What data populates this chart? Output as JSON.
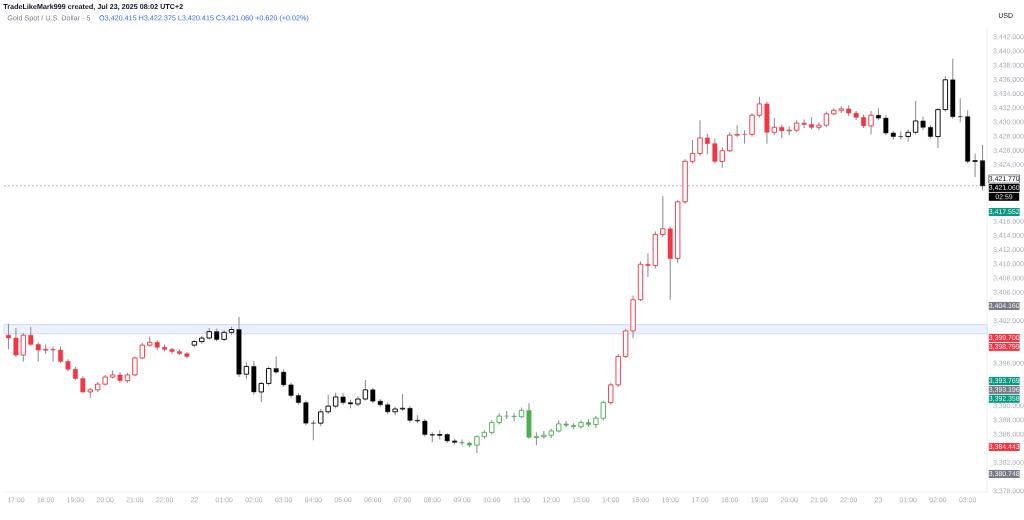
{
  "chart_data": {
    "type": "candlestick",
    "title": "Gold Spot / U.S. Dollar · 5",
    "subtitle": "O3,420.415 H3,422.375 L3,420.415 C3,421.060 +0.620 (+0.02%)",
    "ylabel": "USD",
    "categories": [
      null,
      "17:00",
      null,
      null,
      null,
      "18:00",
      null,
      null,
      null,
      "19:00",
      null,
      null,
      null,
      "20:00",
      null,
      null,
      null,
      "21:00",
      null,
      null,
      null,
      "22:00",
      null,
      null,
      null,
      "22",
      null,
      null,
      null,
      "01:00",
      null,
      null,
      null,
      "02:00",
      null,
      null,
      null,
      "03:00",
      null,
      null,
      null,
      "04:00",
      null,
      null,
      null,
      "05:00",
      null,
      null,
      null,
      "06:00",
      null,
      null,
      null,
      "07:00",
      null,
      null,
      null,
      "08:00",
      null,
      null,
      null,
      "09:00",
      null,
      null,
      null,
      "10:00",
      null,
      null,
      null,
      "11:00",
      null,
      null,
      null,
      "12:00",
      null,
      null,
      null,
      "13:00",
      null,
      null,
      null,
      "14:00",
      null,
      null,
      null,
      "15:00",
      null,
      null,
      null,
      "16:00",
      null,
      null,
      null,
      "17:00",
      null,
      null,
      null,
      "18:00",
      null,
      null,
      null,
      "19:00",
      null,
      null,
      null,
      "20:00",
      null,
      null,
      null,
      "21:00",
      null,
      null,
      null,
      "22:00",
      null,
      null,
      null,
      "23",
      null,
      null,
      null,
      "01:00",
      null,
      null,
      null,
      "02:00",
      null,
      null,
      null,
      "03:00",
      null,
      null
    ],
    "ohlc": [
      [
        3400.0,
        3401.6,
        3398.0,
        3399.6
      ],
      [
        3399.6,
        3401.0,
        3396.9,
        3397.2
      ],
      [
        3397.2,
        3400.3,
        3396.3,
        3400.0
      ],
      [
        3400.0,
        3401.2,
        3398.5,
        3398.7
      ],
      [
        3398.7,
        3399.0,
        3396.3,
        3397.9
      ],
      [
        3397.9,
        3398.7,
        3397.4,
        3398.0
      ],
      [
        3398.0,
        3398.4,
        3396.3,
        3397.9
      ],
      [
        3397.9,
        3398.4,
        3396.1,
        3396.3
      ],
      [
        3396.3,
        3396.6,
        3394.9,
        3395.2
      ],
      [
        3395.2,
        3395.5,
        3393.6,
        3393.9
      ],
      [
        3393.9,
        3394.2,
        3391.8,
        3392.0
      ],
      [
        3392.0,
        3392.6,
        3391.2,
        3392.3
      ],
      [
        3392.3,
        3393.4,
        3392.0,
        3393.1
      ],
      [
        3393.1,
        3394.4,
        3392.9,
        3394.1
      ],
      [
        3394.1,
        3395.0,
        3393.9,
        3394.4
      ],
      [
        3394.4,
        3394.8,
        3393.3,
        3393.6
      ],
      [
        3393.6,
        3394.7,
        3393.3,
        3394.4
      ],
      [
        3394.4,
        3397.0,
        3394.2,
        3396.8
      ],
      [
        3396.8,
        3398.9,
        3396.6,
        3398.6
      ],
      [
        3398.6,
        3399.8,
        3398.4,
        3399.0
      ],
      [
        3399.0,
        3399.3,
        3397.9,
        3398.3
      ],
      [
        3398.3,
        3398.7,
        3397.7,
        3398.0
      ],
      [
        3398.0,
        3398.2,
        3397.4,
        3397.7
      ],
      [
        3397.7,
        3398.0,
        3397.2,
        3397.4
      ],
      [
        3397.4,
        3397.6,
        3396.7,
        3397.0
      ],
      [
        3398.6,
        3399.3,
        3398.3,
        3399.1
      ],
      [
        3399.1,
        3399.9,
        3398.8,
        3399.6
      ],
      [
        3399.6,
        3401.0,
        3399.4,
        3400.5
      ],
      [
        3400.5,
        3400.9,
        3399.1,
        3399.4
      ],
      [
        3399.4,
        3400.7,
        3399.2,
        3400.4
      ],
      [
        3400.4,
        3401.2,
        3400.0,
        3400.8
      ],
      [
        3400.8,
        3402.6,
        3394.1,
        3394.5
      ],
      [
        3394.5,
        3396.2,
        3393.8,
        3395.6
      ],
      [
        3395.6,
        3396.4,
        3391.6,
        3392.0
      ],
      [
        3392.0,
        3393.4,
        3390.6,
        3393.2
      ],
      [
        3393.2,
        3395.6,
        3392.9,
        3395.3
      ],
      [
        3395.3,
        3397.0,
        3394.6,
        3394.8
      ],
      [
        3394.8,
        3395.2,
        3392.7,
        3393.0
      ],
      [
        3393.0,
        3393.3,
        3391.2,
        3391.5
      ],
      [
        3391.5,
        3391.8,
        3390.2,
        3390.5
      ],
      [
        3390.5,
        3390.8,
        3387.3,
        3387.6
      ],
      [
        3387.6,
        3388.0,
        3385.2,
        3387.6
      ],
      [
        3387.6,
        3389.6,
        3387.2,
        3389.2
      ],
      [
        3389.2,
        3391.6,
        3388.9,
        3390.0
      ],
      [
        3390.0,
        3391.9,
        3389.7,
        3391.3
      ],
      [
        3391.3,
        3391.8,
        3390.2,
        3390.5
      ],
      [
        3390.5,
        3390.9,
        3389.7,
        3390.3
      ],
      [
        3390.3,
        3391.4,
        3390.0,
        3391.0
      ],
      [
        3391.0,
        3393.7,
        3390.8,
        3392.3
      ],
      [
        3392.3,
        3392.6,
        3390.4,
        3390.7
      ],
      [
        3390.7,
        3391.0,
        3389.9,
        3390.2
      ],
      [
        3390.2,
        3390.5,
        3388.9,
        3389.2
      ],
      [
        3389.2,
        3389.9,
        3388.7,
        3389.6
      ],
      [
        3389.6,
        3391.7,
        3389.3,
        3389.7
      ],
      [
        3389.7,
        3390.0,
        3387.7,
        3388.0
      ],
      [
        3388.0,
        3388.7,
        3387.6,
        3387.9
      ],
      [
        3387.9,
        3388.2,
        3385.7,
        3386.0
      ],
      [
        3386.0,
        3386.3,
        3384.9,
        3385.9
      ],
      [
        3385.9,
        3386.6,
        3385.3,
        3386.0
      ],
      [
        3386.0,
        3386.2,
        3384.8,
        3385.1
      ],
      [
        3385.1,
        3385.4,
        3384.6,
        3384.9
      ],
      [
        3384.9,
        3385.3,
        3384.5,
        3384.8
      ],
      [
        3384.8,
        3385.0,
        3384.2,
        3384.5
      ],
      [
        3384.5,
        3385.9,
        3383.4,
        3385.7
      ],
      [
        3385.7,
        3386.6,
        3385.4,
        3386.3
      ],
      [
        3386.3,
        3388.0,
        3386.0,
        3387.7
      ],
      [
        3387.7,
        3389.0,
        3387.4,
        3388.6
      ],
      [
        3388.6,
        3389.3,
        3388.2,
        3388.6
      ],
      [
        3388.6,
        3389.0,
        3387.9,
        3388.5
      ],
      [
        3388.5,
        3389.8,
        3388.3,
        3389.4
      ],
      [
        3389.4,
        3390.4,
        3385.4,
        3385.6
      ],
      [
        3385.6,
        3386.3,
        3384.5,
        3385.7
      ],
      [
        3385.7,
        3386.5,
        3385.4,
        3385.9
      ],
      [
        3385.9,
        3386.8,
        3385.5,
        3386.5
      ],
      [
        3386.5,
        3388.0,
        3386.3,
        3387.5
      ],
      [
        3387.5,
        3387.9,
        3387.0,
        3387.3
      ],
      [
        3387.3,
        3387.6,
        3386.8,
        3387.1
      ],
      [
        3387.1,
        3388.0,
        3386.8,
        3387.7
      ],
      [
        3387.7,
        3388.2,
        3387.1,
        3387.4
      ],
      [
        3387.4,
        3388.6,
        3386.9,
        3388.3
      ],
      [
        3388.3,
        3390.8,
        3388.0,
        3390.5
      ],
      [
        3390.5,
        3393.3,
        3390.2,
        3393.0
      ],
      [
        3393.0,
        3397.3,
        3392.7,
        3397.0
      ],
      [
        3397.0,
        3400.9,
        3396.8,
        3400.6
      ],
      [
        3400.6,
        3405.6,
        3399.6,
        3405.0
      ],
      [
        3405.0,
        3410.4,
        3404.8,
        3410.0
      ],
      [
        3410.0,
        3411.5,
        3408.2,
        3409.8
      ],
      [
        3409.8,
        3414.6,
        3409.4,
        3414.2
      ],
      [
        3414.2,
        3419.6,
        3413.8,
        3415.0
      ],
      [
        3415.0,
        3415.3,
        3405.0,
        3410.8
      ],
      [
        3410.8,
        3419.1,
        3410.2,
        3418.8
      ],
      [
        3418.8,
        3424.8,
        3418.5,
        3424.5
      ],
      [
        3424.5,
        3427.5,
        3424.2,
        3425.6
      ],
      [
        3425.6,
        3430.3,
        3425.3,
        3427.8
      ],
      [
        3427.8,
        3428.4,
        3425.5,
        3427.0
      ],
      [
        3427.0,
        3427.7,
        3424.2,
        3424.5
      ],
      [
        3424.5,
        3426.5,
        3423.6,
        3426.0
      ],
      [
        3426.0,
        3428.6,
        3425.8,
        3428.2
      ],
      [
        3428.2,
        3429.6,
        3427.9,
        3428.3
      ],
      [
        3428.3,
        3428.9,
        3427.0,
        3428.3
      ],
      [
        3428.3,
        3431.3,
        3428.0,
        3431.0
      ],
      [
        3431.0,
        3433.6,
        3430.7,
        3432.6
      ],
      [
        3432.6,
        3432.9,
        3427.0,
        3428.6
      ],
      [
        3428.6,
        3430.6,
        3428.2,
        3429.3
      ],
      [
        3429.3,
        3429.7,
        3427.8,
        3428.8
      ],
      [
        3428.8,
        3429.4,
        3428.2,
        3428.9
      ],
      [
        3428.9,
        3430.3,
        3428.6,
        3429.9
      ],
      [
        3429.9,
        3430.4,
        3429.2,
        3429.7
      ],
      [
        3429.7,
        3430.7,
        3429.0,
        3429.3
      ],
      [
        3429.3,
        3430.0,
        3428.9,
        3429.6
      ],
      [
        3429.6,
        3431.5,
        3429.3,
        3431.2
      ],
      [
        3431.2,
        3432.0,
        3431.0,
        3431.7
      ],
      [
        3431.7,
        3432.3,
        3431.3,
        3431.9
      ],
      [
        3431.9,
        3432.4,
        3430.9,
        3431.3
      ],
      [
        3431.3,
        3431.6,
        3430.3,
        3430.7
      ],
      [
        3430.7,
        3431.1,
        3429.2,
        3429.5
      ],
      [
        3429.5,
        3431.6,
        3428.3,
        3431.0
      ],
      [
        3431.0,
        3432.0,
        3430.3,
        3430.6
      ],
      [
        3430.6,
        3431.0,
        3428.2,
        3428.5
      ],
      [
        3428.5,
        3428.8,
        3427.6,
        3428.0
      ],
      [
        3428.0,
        3428.7,
        3427.6,
        3428.0
      ],
      [
        3428.0,
        3429.0,
        3427.3,
        3428.6
      ],
      [
        3428.6,
        3433.0,
        3428.3,
        3430.2
      ],
      [
        3430.2,
        3430.8,
        3428.9,
        3429.3
      ],
      [
        3429.3,
        3429.6,
        3427.7,
        3428.0
      ],
      [
        3428.0,
        3432.0,
        3426.4,
        3431.8
      ],
      [
        3431.8,
        3436.5,
        3431.5,
        3436.0
      ],
      [
        3436.0,
        3439.0,
        3430.5,
        3430.8
      ],
      [
        3430.8,
        3433.4,
        3430.0,
        3430.8
      ],
      [
        3430.8,
        3431.7,
        3424.2,
        3424.5
      ],
      [
        3424.5,
        3425.6,
        3422.3,
        3424.6
      ],
      [
        3424.6,
        3426.8,
        3420.4,
        3421.06
      ]
    ],
    "colors": [
      "#f23645",
      "#f23645",
      "#f23645",
      "#f23645",
      "#f23645",
      "#f23645",
      "#f23645",
      "#f23645",
      "#f23645",
      "#f23645",
      "#f23645",
      "#f23645",
      "#f23645",
      "#f23645",
      "#f23645",
      "#f23645",
      "#f23645",
      "#f23645",
      "#f23645",
      "#f23645",
      "#f23645",
      "#f23645",
      "#f23645",
      "#f23645",
      "#f23645",
      "#000000",
      "#000000",
      "#000000",
      "#000000",
      "#000000",
      "#000000",
      "#000000",
      "#000000",
      "#000000",
      "#000000",
      "#000000",
      "#000000",
      "#000000",
      "#000000",
      "#000000",
      "#000000",
      "#000000",
      "#000000",
      "#000000",
      "#000000",
      "#000000",
      "#000000",
      "#000000",
      "#000000",
      "#000000",
      "#000000",
      "#000000",
      "#000000",
      "#000000",
      "#000000",
      "#000000",
      "#000000",
      "#000000",
      "#000000",
      "#000000",
      "#000000",
      "#4caf50",
      "#4caf50",
      "#4caf50",
      "#4caf50",
      "#4caf50",
      "#4caf50",
      "#4caf50",
      "#4caf50",
      "#4caf50",
      "#4caf50",
      "#4caf50",
      "#4caf50",
      "#4caf50",
      "#4caf50",
      "#4caf50",
      "#4caf50",
      "#4caf50",
      "#4caf50",
      "#4caf50",
      "#4caf50",
      "#f23645",
      "#f23645",
      "#f23645",
      "#f23645",
      "#f23645",
      "#f23645",
      "#f23645",
      "#f23645",
      "#f23645",
      "#f23645",
      "#f23645",
      "#f23645",
      "#f23645",
      "#f23645",
      "#f23645",
      "#f23645",
      "#f23645",
      "#f23645",
      "#f23645",
      "#f23645",
      "#f23645",
      "#f23645",
      "#f23645",
      "#f23645",
      "#f23645",
      "#f23645",
      "#f23645",
      "#f23645",
      "#f23645",
      "#f23645",
      "#f23645",
      "#f23645",
      "#f23645",
      "#f23645",
      "#f23645",
      "#f23645",
      "#000000",
      "#000000",
      "#000000",
      "#000000",
      "#000000",
      "#000000",
      "#000000",
      "#000000",
      "#000000",
      "#000000",
      "#000000",
      "#000000",
      "#000000",
      "#000000",
      "#000000"
    ],
    "ylim": [
      3377.9,
      3443.3
    ],
    "yticks": [
      {
        "value": 3378,
        "label": "3,378.000"
      },
      {
        "value": 3382,
        "label": "3,382.000"
      },
      {
        "value": 3386,
        "label": "3,386.000"
      },
      {
        "value": 3388,
        "label": "3,388.000"
      },
      {
        "value": 3390,
        "label": "3,390.000"
      },
      {
        "value": 3396,
        "label": "3,396.000"
      },
      {
        "value": 3402,
        "label": "3,402.000"
      },
      {
        "value": 3406,
        "label": "3,406.000"
      },
      {
        "value": 3408,
        "label": "3,408.000"
      },
      {
        "value": 3410,
        "label": "3,410.000"
      },
      {
        "value": 3412,
        "label": "3,412.000"
      },
      {
        "value": 3414,
        "label": "3,414.000"
      },
      {
        "value": 3416,
        "label": "3,416.000"
      },
      {
        "value": 3424,
        "label": "3,424.000"
      },
      {
        "value": 3426,
        "label": "3,426.000"
      },
      {
        "value": 3428,
        "label": "3,428.000"
      },
      {
        "value": 3430,
        "label": "3,430.000"
      },
      {
        "value": 3432,
        "label": "3,432.000"
      },
      {
        "value": 3434,
        "label": "3,434.000"
      },
      {
        "value": 3436,
        "label": "3,436.000"
      },
      {
        "value": 3438,
        "label": "3,438.000"
      },
      {
        "value": 3440,
        "label": "3,440.000"
      },
      {
        "value": 3442,
        "label": "3,442.000"
      }
    ],
    "ref_lines": [
      {
        "axis": "y",
        "value": 3421.06,
        "label": "3,421.060",
        "color": "#999999",
        "line_style": "dashed"
      }
    ],
    "bands": [
      {
        "axis": "y",
        "from": 3400.2,
        "to": 3401.5,
        "color": "#ecf1ff"
      }
    ],
    "annotations": [
      "TradeLikeMark999 created, Jul 23, 2025 08:02 UTC+2",
      "3,421.770",
      "02:59",
      "3,417.552",
      "3,404.160",
      "3,399.700",
      "3,398.799",
      "3,393.769",
      "3,393.196",
      "3,392.358",
      "3,384.443",
      "3,380.748"
    ]
  }
}
